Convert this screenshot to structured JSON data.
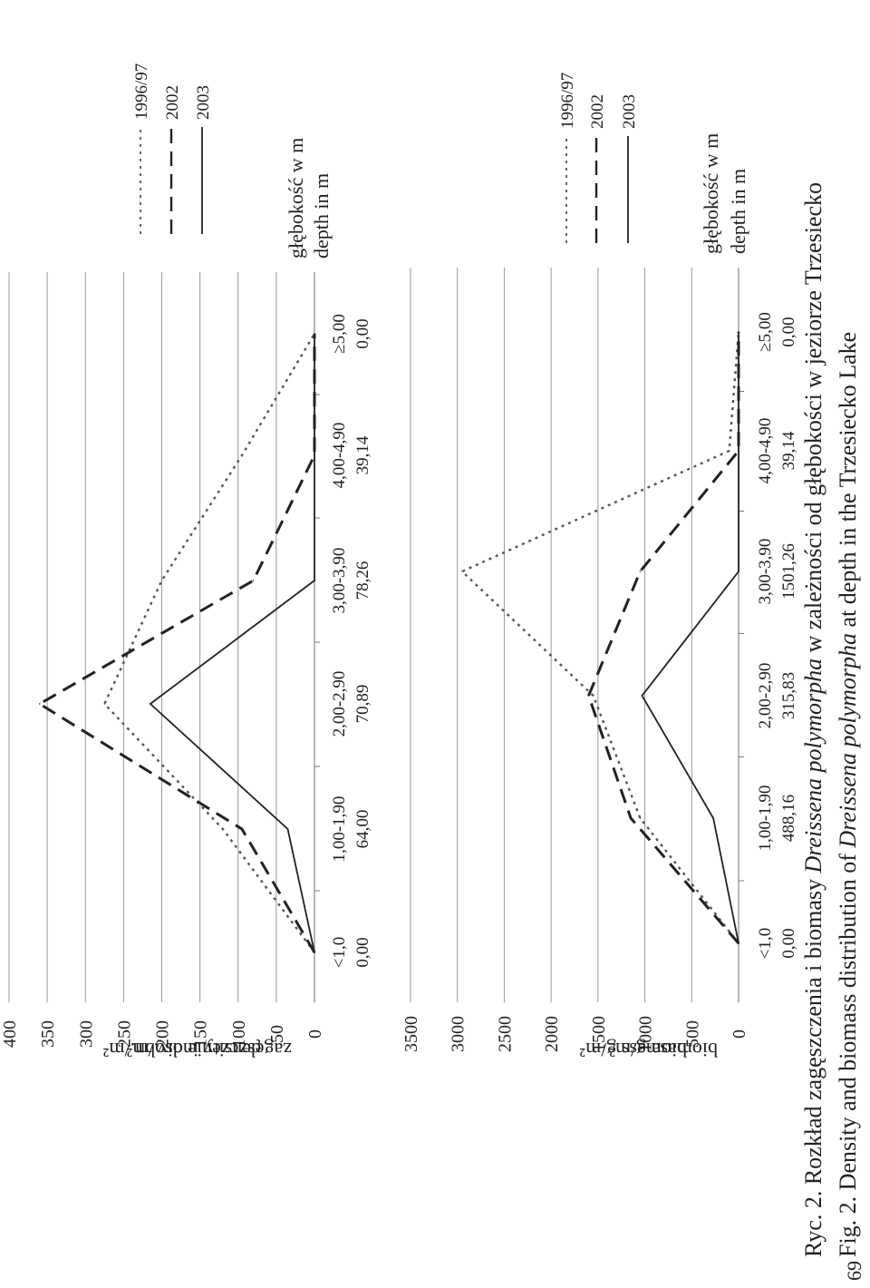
{
  "page_number": "69",
  "caption": {
    "pl_prefix": "Ryc. 2. Rozkład zagęszczenia i biomasy ",
    "pl_species": "Dreissena polymorpha",
    "pl_suffix": " w zależności od głębokości w jeziorze Trzesiecko",
    "en_prefix": "Fig. 2. Density and biomass distribution of ",
    "en_species": "Dreissena polymorpha",
    "en_suffix": " at depth in the Trzesiecko Lake"
  },
  "styles": {
    "s1996": {
      "color": "#555555",
      "dash": "3,5"
    },
    "s2002": {
      "color": "#222222",
      "dash": "16,9"
    },
    "s2003": {
      "color": "#222222",
      "dash": ""
    }
  },
  "chart_data": [
    {
      "type": "line",
      "ylabel_pl": "zagęszczenie osobn./m²",
      "ylabel_en": "density indiv./m²",
      "xlabel_pl": "głębokość w m",
      "xlabel_en": "depth in m",
      "categories": [
        "<1,0",
        "1,00-1,90",
        "2,00-2,90",
        "3,00-3,90",
        "4,00-4,90",
        "≥5,00"
      ],
      "category_values": [
        "0,00",
        "64,00",
        "70,89",
        "78,26",
        "39,14",
        "0,00"
      ],
      "ylim": [
        0,
        400
      ],
      "yticks": [
        0,
        50,
        100,
        150,
        200,
        250,
        300,
        350,
        400
      ],
      "grid": true,
      "legend_position": "top-right",
      "series": [
        {
          "name": "1996/97",
          "style": "s1996",
          "values": [
            0,
            120,
            275,
            200,
            95,
            0
          ]
        },
        {
          "name": "2002",
          "style": "s2002",
          "values": [
            0,
            95,
            360,
            80,
            0,
            0
          ]
        },
        {
          "name": "2003",
          "style": "s2003",
          "values": [
            0,
            35,
            215,
            0,
            0,
            0
          ]
        }
      ]
    },
    {
      "type": "line",
      "ylabel_pl": "biomasa g/m²",
      "ylabel_en": "biomass g/m²",
      "xlabel_pl": "głębokość w m",
      "xlabel_en": "depth in m",
      "categories": [
        "<1,0",
        "1,00-1,90",
        "2,00-2,90",
        "3,00-3,90",
        "4,00-4,90",
        "≥5,00"
      ],
      "category_values": [
        "0,00",
        "488,16",
        "315,83",
        "1501,26",
        "39,14",
        "0,00"
      ],
      "ylim": [
        0,
        3500
      ],
      "yticks": [
        0,
        500,
        1000,
        1500,
        2000,
        2500,
        3000,
        3500
      ],
      "grid": true,
      "legend_position": "top-right",
      "series": [
        {
          "name": "1996/97",
          "style": "s1996",
          "values": [
            0,
            1050,
            1550,
            2950,
            100,
            0
          ]
        },
        {
          "name": "2002",
          "style": "s2002",
          "values": [
            0,
            1150,
            1600,
            1050,
            0,
            0
          ]
        },
        {
          "name": "2003",
          "style": "s2003",
          "values": [
            0,
            270,
            1030,
            0,
            0,
            0
          ]
        }
      ]
    }
  ]
}
